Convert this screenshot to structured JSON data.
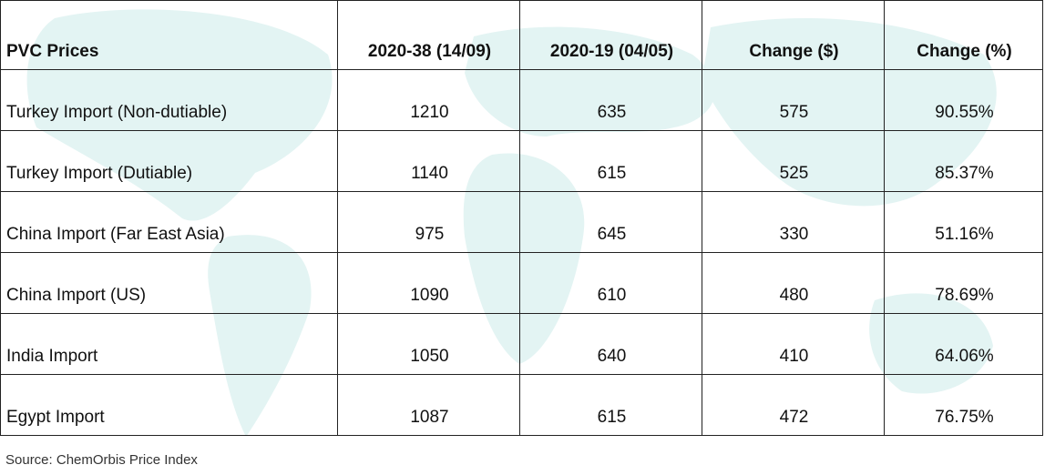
{
  "table": {
    "header": [
      "PVC Prices",
      "2020-38 (14/09)",
      "2020-19 (04/05)",
      "Change ($)",
      "Change (%)"
    ],
    "rows": [
      [
        "Turkey Import (Non-dutiable)",
        "1210",
        "635",
        "575",
        "90.55%"
      ],
      [
        "Turkey Import (Dutiable)",
        "1140",
        "615",
        "525",
        "85.37%"
      ],
      [
        "China Import (Far East Asia)",
        "975",
        "645",
        "330",
        "51.16%"
      ],
      [
        "China Import (US)",
        "1090",
        "610",
        "480",
        "78.69%"
      ],
      [
        "India Import",
        "1050",
        "640",
        "410",
        "64.06%"
      ],
      [
        "Egypt Import",
        "1087",
        "615",
        "472",
        "76.75%"
      ]
    ]
  },
  "source": "Source: ChemOrbis Price Index"
}
